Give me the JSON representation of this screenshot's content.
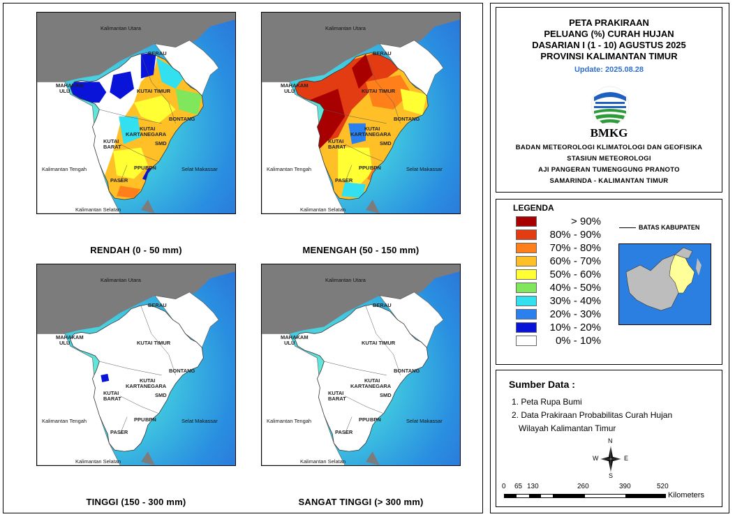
{
  "maps": [
    {
      "caption": "RENDAH (0 - 50 mm)",
      "variant": "rendah"
    },
    {
      "caption": "MENENGAH (50 - 150 mm)",
      "variant": "menengah"
    },
    {
      "caption": "TINGGI (150 - 300 mm)",
      "variant": "tinggi"
    },
    {
      "caption": "SANGAT TINGGI (> 300 mm)",
      "variant": "sangat-tinggi"
    }
  ],
  "labels": {
    "kaltara": "Kalimantan Utara",
    "kalteng": "Kalimantan Tengah",
    "kalsel": "Kalimantan Selatan",
    "selat": "Selat Makassar",
    "berau": "BERAU",
    "mahakam1": "MAHAKAM",
    "mahakam2": "ULU",
    "kutim": "KUTAI TIMUR",
    "bontang": "BONTANG",
    "kukar1": "KUTAI",
    "kukar2": "KARTANEGARA",
    "kubar1": "KUTAI",
    "kubar2": "BARAT",
    "smd": "SMD",
    "ppu": "PPU",
    "bpn": "BPN",
    "paser": "PASER"
  },
  "header": {
    "line1": "PETA PRAKIRAAN",
    "line2": "PELUANG (%) CURAH HUJAN",
    "line3": "DASARIAN I (1 - 10) AGUSTUS 2025",
    "line4": "PROVINSI KALIMANTAN TIMUR",
    "update": "Update: 2025.08.28",
    "logo_text": "BMKG",
    "org1": "BADAN METEOROLOGI KLIMATOLOGI DAN GEOFISIKA",
    "org2": "STASIUN METEOROLOGI",
    "org3": "AJI PANGERAN TUMENGGUNG PRANOTO",
    "org4": "SAMARINDA - KALIMANTAN TIMUR"
  },
  "legend": {
    "title": "LEGENDA",
    "boundary": "BATAS KABUPATEN",
    "items": [
      {
        "label": "> 90%",
        "color": "#a80000"
      },
      {
        "label": "80% - 90%",
        "color": "#e33c12"
      },
      {
        "label": "70% - 80%",
        "color": "#ff7f1a"
      },
      {
        "label": "60% - 70%",
        "color": "#ffbf26"
      },
      {
        "label": "50% - 60%",
        "color": "#ffff33"
      },
      {
        "label": "40% - 50%",
        "color": "#80e65c"
      },
      {
        "label": "30% - 40%",
        "color": "#33e0f0"
      },
      {
        "label": "20% - 30%",
        "color": "#2b80f0"
      },
      {
        "label": "10% - 20%",
        "color": "#0a14d9"
      },
      {
        "label": "0% - 10%",
        "color": "#ffffff"
      }
    ]
  },
  "source": {
    "title": "Sumber Data :",
    "item1": "1. Peta Rupa Bumi",
    "item2a": "2. Data Prakiraan Probabilitas Curah Hujan",
    "item2b": "Wilayah Kalimantan Timur"
  },
  "compass": {
    "n": "N",
    "s": "S",
    "e": "E",
    "w": "W"
  },
  "scale": {
    "ticks": [
      "0",
      "65",
      "130",
      "260",
      "390",
      "520"
    ],
    "unit": "Kilometers"
  }
}
